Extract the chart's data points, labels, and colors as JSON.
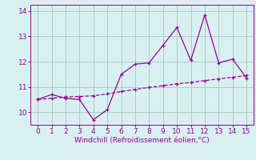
{
  "xlabel": "Windchill (Refroidissement éolien,°C)",
  "x_line1": [
    0,
    1,
    2,
    3,
    4,
    5,
    6,
    7,
    8,
    9,
    10,
    11,
    12,
    13,
    14,
    15
  ],
  "y_line1": [
    10.5,
    10.7,
    10.55,
    10.5,
    9.7,
    10.1,
    11.5,
    11.9,
    11.95,
    12.65,
    13.35,
    12.05,
    13.85,
    11.95,
    12.1,
    11.35
  ],
  "x_line2": [
    0,
    1,
    2,
    3,
    4,
    5,
    6,
    7,
    8,
    9,
    10,
    11,
    12,
    13,
    14,
    15
  ],
  "y_line2": [
    10.5,
    10.55,
    10.6,
    10.62,
    10.65,
    10.72,
    10.82,
    10.9,
    10.98,
    11.05,
    11.12,
    11.18,
    11.25,
    11.32,
    11.38,
    11.45
  ],
  "line_color": "#990099",
  "bg_color": "#d8f0f0",
  "grid_color": "#aacccc",
  "ylim": [
    9.5,
    14.25
  ],
  "xlim": [
    -0.5,
    15.5
  ],
  "yticks": [
    10,
    11,
    12,
    13,
    14
  ],
  "xticks": [
    0,
    1,
    2,
    3,
    4,
    5,
    6,
    7,
    8,
    9,
    10,
    11,
    12,
    13,
    14,
    15
  ]
}
